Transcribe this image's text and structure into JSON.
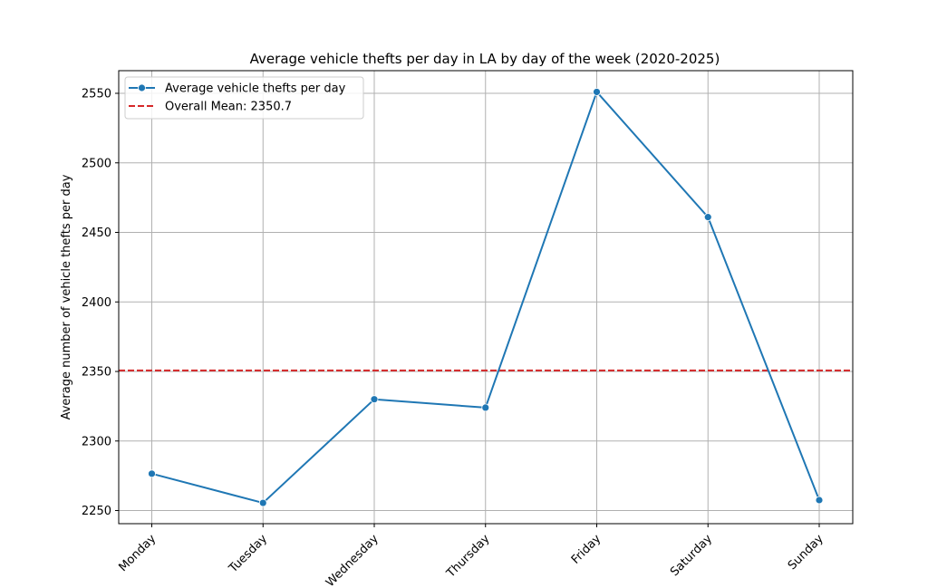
{
  "chart_data": {
    "type": "line",
    "title": "Average vehicle thefts per day in LA by day of the week (2020-2025)",
    "xlabel": "",
    "ylabel": "Average number of vehicle thefts per day",
    "categories": [
      "Monday",
      "Tuesday",
      "Wednesday",
      "Thursday",
      "Friday",
      "Saturday",
      "Sunday"
    ],
    "series": [
      {
        "name": "Average vehicle thefts per day",
        "values": [
          2276.5,
          2255.5,
          2330,
          2324,
          2551,
          2461,
          2257.5
        ],
        "color": "#1f77b4",
        "marker": "circle"
      }
    ],
    "mean_line": {
      "label": "Overall Mean: 2350.7",
      "value": 2350.7,
      "color": "#d62728",
      "style": "dashed"
    },
    "yticks": [
      2250,
      2300,
      2350,
      2400,
      2450,
      2500,
      2550
    ],
    "ylim": [
      2240,
      2565
    ],
    "grid": true,
    "legend_position": "top-left",
    "xtick_rotation": -45
  }
}
